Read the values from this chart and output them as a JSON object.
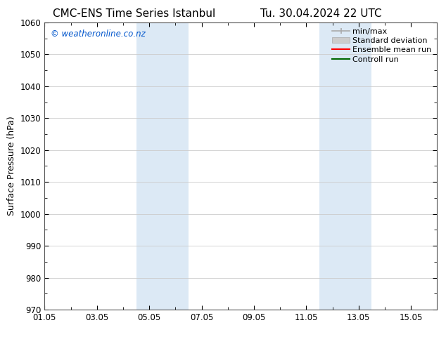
{
  "title_left": "CMC-ENS Time Series Istanbul",
  "title_right": "Tu. 30.04.2024 22 UTC",
  "ylabel": "Surface Pressure (hPa)",
  "ylim": [
    970,
    1060
  ],
  "yticks": [
    970,
    980,
    990,
    1000,
    1010,
    1020,
    1030,
    1040,
    1050,
    1060
  ],
  "xlim": [
    0,
    15
  ],
  "xtick_labels": [
    "01.05",
    "03.05",
    "05.05",
    "07.05",
    "09.05",
    "11.05",
    "13.05",
    "15.05"
  ],
  "xtick_positions": [
    0,
    2,
    4,
    6,
    8,
    10,
    12,
    14
  ],
  "minor_xtick_positions": [
    1,
    3,
    5,
    7,
    9,
    11,
    13
  ],
  "shaded_bands": [
    {
      "x_start": 3.5,
      "x_end": 5.5,
      "color": "#dce9f5"
    },
    {
      "x_start": 10.5,
      "x_end": 12.5,
      "color": "#dce9f5"
    }
  ],
  "watermark_text": "© weatheronline.co.nz",
  "watermark_color": "#0055cc",
  "watermark_fontsize": 8.5,
  "legend_entries": [
    {
      "label": "min/max",
      "color": "#aaaaaa",
      "style": "minmax"
    },
    {
      "label": "Standard deviation",
      "color": "#cccccc",
      "style": "stddev"
    },
    {
      "label": "Ensemble mean run",
      "color": "#ff0000",
      "style": "line"
    },
    {
      "label": "Controll run",
      "color": "#006600",
      "style": "line"
    }
  ],
  "background_color": "#ffffff",
  "plot_bg_color": "#ffffff",
  "grid_color": "#cccccc",
  "title_fontsize": 11,
  "axis_label_fontsize": 9,
  "tick_fontsize": 8.5,
  "legend_fontsize": 8
}
